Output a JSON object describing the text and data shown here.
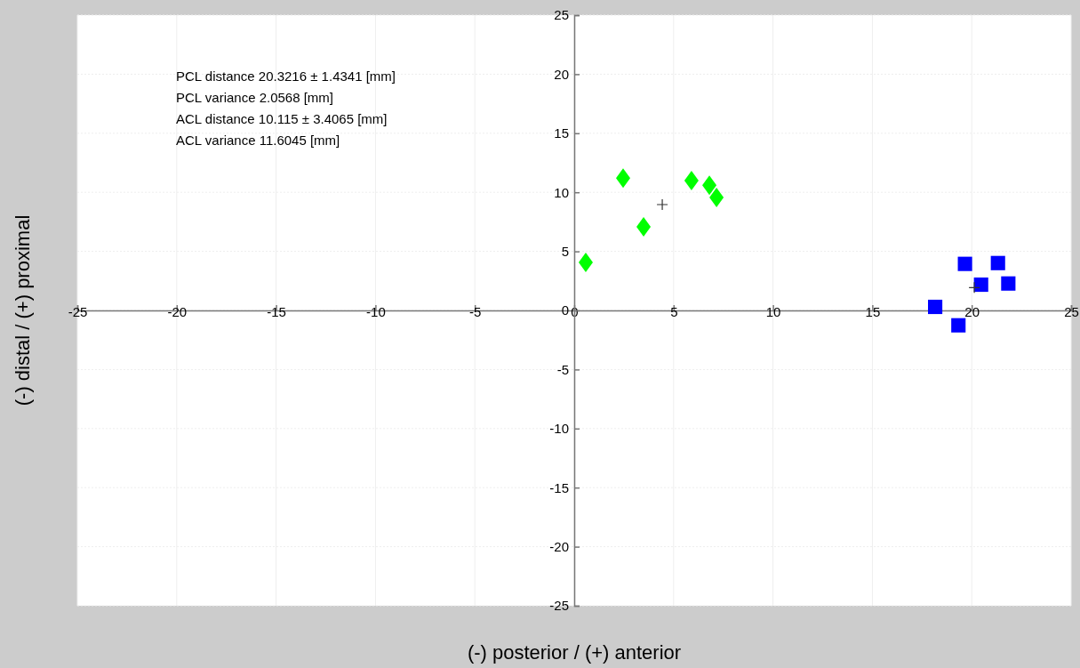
{
  "chart_data": {
    "type": "scatter",
    "xlabel": "(-) posterior / (+) anterior",
    "ylabel": "(-) distal / (+) proximal",
    "xlim": [
      -25,
      25
    ],
    "ylim": [
      -25,
      25
    ],
    "xticks": [
      -25,
      -20,
      -15,
      -10,
      -5,
      0,
      5,
      10,
      15,
      20,
      25
    ],
    "yticks": [
      -25,
      -20,
      -15,
      -10,
      -5,
      0,
      5,
      10,
      15,
      20,
      25
    ],
    "grid": true,
    "annotations": [
      "PCL distance 20.3216 ± 1.4341 [mm]",
      "PCL variance 2.0568 [mm]",
      "ACL distance 10.115 ± 3.4065 [mm]",
      "ACL variance 11.6045 [mm]"
    ],
    "series": [
      {
        "color": "#00ff00",
        "marker": "diamond",
        "x": [
          0.58,
          2.46,
          3.49,
          5.9,
          6.8,
          7.16
        ],
        "values": [
          4.07,
          11.2,
          7.08,
          11.0,
          10.6,
          9.56
        ]
      },
      {
        "color": "#0000ff",
        "marker": "square",
        "x": [
          19.66,
          21.32,
          20.47,
          21.84,
          18.16,
          19.33
        ],
        "values": [
          3.94,
          4.01,
          2.18,
          2.28,
          0.3,
          -1.26
        ]
      },
      {
        "color": "#333333",
        "marker": "cross",
        "x": [
          4.43,
          20.13
        ],
        "values": [
          8.96,
          1.93
        ]
      }
    ]
  }
}
